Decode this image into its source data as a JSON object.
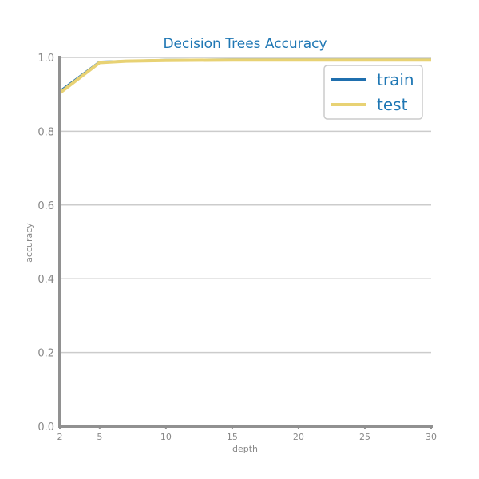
{
  "chart_data": {
    "type": "line",
    "title": "Decision Trees Accuracy",
    "xlabel": "depth",
    "ylabel": "accuracy",
    "x": [
      2,
      5,
      7,
      10,
      15,
      20,
      25,
      30
    ],
    "xticks": [
      2,
      5,
      10,
      15,
      20,
      25,
      30
    ],
    "yticks": [
      "0.0",
      "0.2",
      "0.4",
      "0.6",
      "0.8",
      "1.0"
    ],
    "xlim": [
      2,
      30
    ],
    "ylim": [
      0,
      1.0
    ],
    "grid": "horizontal",
    "legend_position": "top-right",
    "series": [
      {
        "name": "train",
        "color": "#1f6fae",
        "values": [
          0.908,
          0.988,
          0.99,
          0.993,
          0.994,
          0.994,
          0.994,
          0.994
        ]
      },
      {
        "name": "test",
        "color": "#e8d274",
        "values": [
          0.904,
          0.986,
          0.99,
          0.992,
          0.993,
          0.993,
          0.993,
          0.993
        ]
      }
    ]
  }
}
